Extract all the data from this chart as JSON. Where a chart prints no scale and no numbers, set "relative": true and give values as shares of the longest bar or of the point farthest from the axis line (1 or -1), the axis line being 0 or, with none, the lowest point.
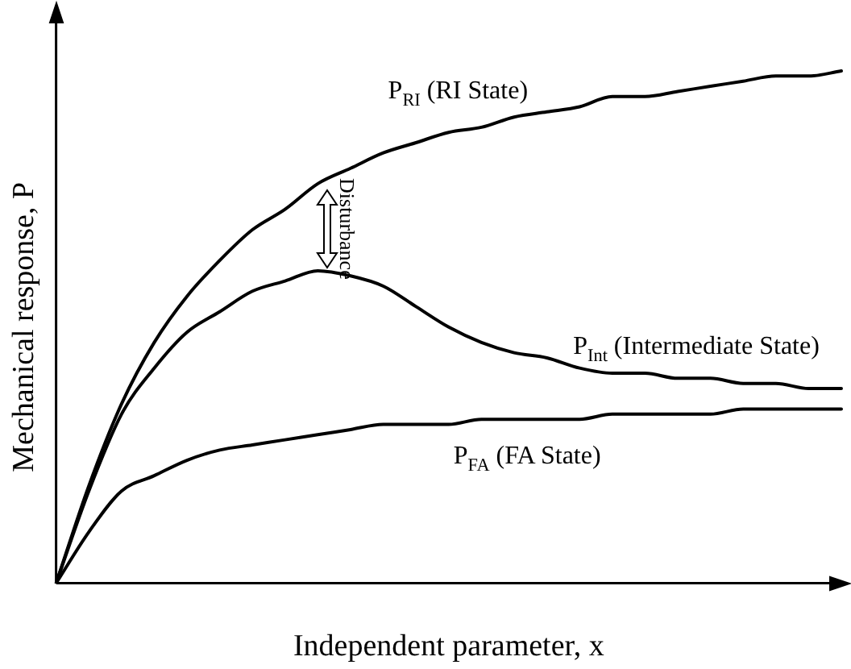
{
  "chart_data": {
    "type": "line",
    "relative": true,
    "xlabel": "Independent parameter, x",
    "ylabel": "Mechanical response, P",
    "legend": false,
    "grid": false,
    "marker": "none",
    "categories": [
      null,
      null,
      null,
      null,
      null,
      null,
      null,
      null,
      null,
      null,
      null,
      null,
      null,
      null,
      null,
      null,
      null,
      null,
      null,
      null,
      null,
      null,
      null,
      null,
      null
    ],
    "series": [
      {
        "name": "P$_{RI}$ (RI State)",
        "color": "#000000",
        "values": [
          0,
          0.19,
          0.35,
          0.47,
          0.56,
          0.63,
          0.69,
          0.73,
          0.78,
          0.81,
          0.84,
          0.86,
          0.88,
          0.89,
          0.91,
          0.92,
          0.93,
          0.95,
          0.95,
          0.96,
          0.97,
          0.98,
          0.99,
          0.99,
          1
        ]
      },
      {
        "name": "P$_{Int}$ (Intermediate State)",
        "color": "#000000",
        "values": [
          0,
          0.18,
          0.33,
          0.42,
          0.49,
          0.53,
          0.57,
          0.59,
          0.61,
          0.6,
          0.58,
          0.54,
          0.5,
          0.47,
          0.45,
          0.44,
          0.42,
          0.41,
          0.41,
          0.4,
          0.4,
          0.39,
          0.39,
          0.38,
          0.38
        ]
      },
      {
        "name": "P$_{FA}$ (FA State)",
        "color": "#000000",
        "values": [
          0,
          0.1,
          0.18,
          0.21,
          0.24,
          0.26,
          0.27,
          0.28,
          0.29,
          0.3,
          0.31,
          0.31,
          0.31,
          0.32,
          0.32,
          0.32,
          0.32,
          0.33,
          0.33,
          0.33,
          0.33,
          0.34,
          0.34,
          0.34,
          0.34
        ]
      }
    ],
    "annotations": [
      "Disturbance"
    ]
  }
}
